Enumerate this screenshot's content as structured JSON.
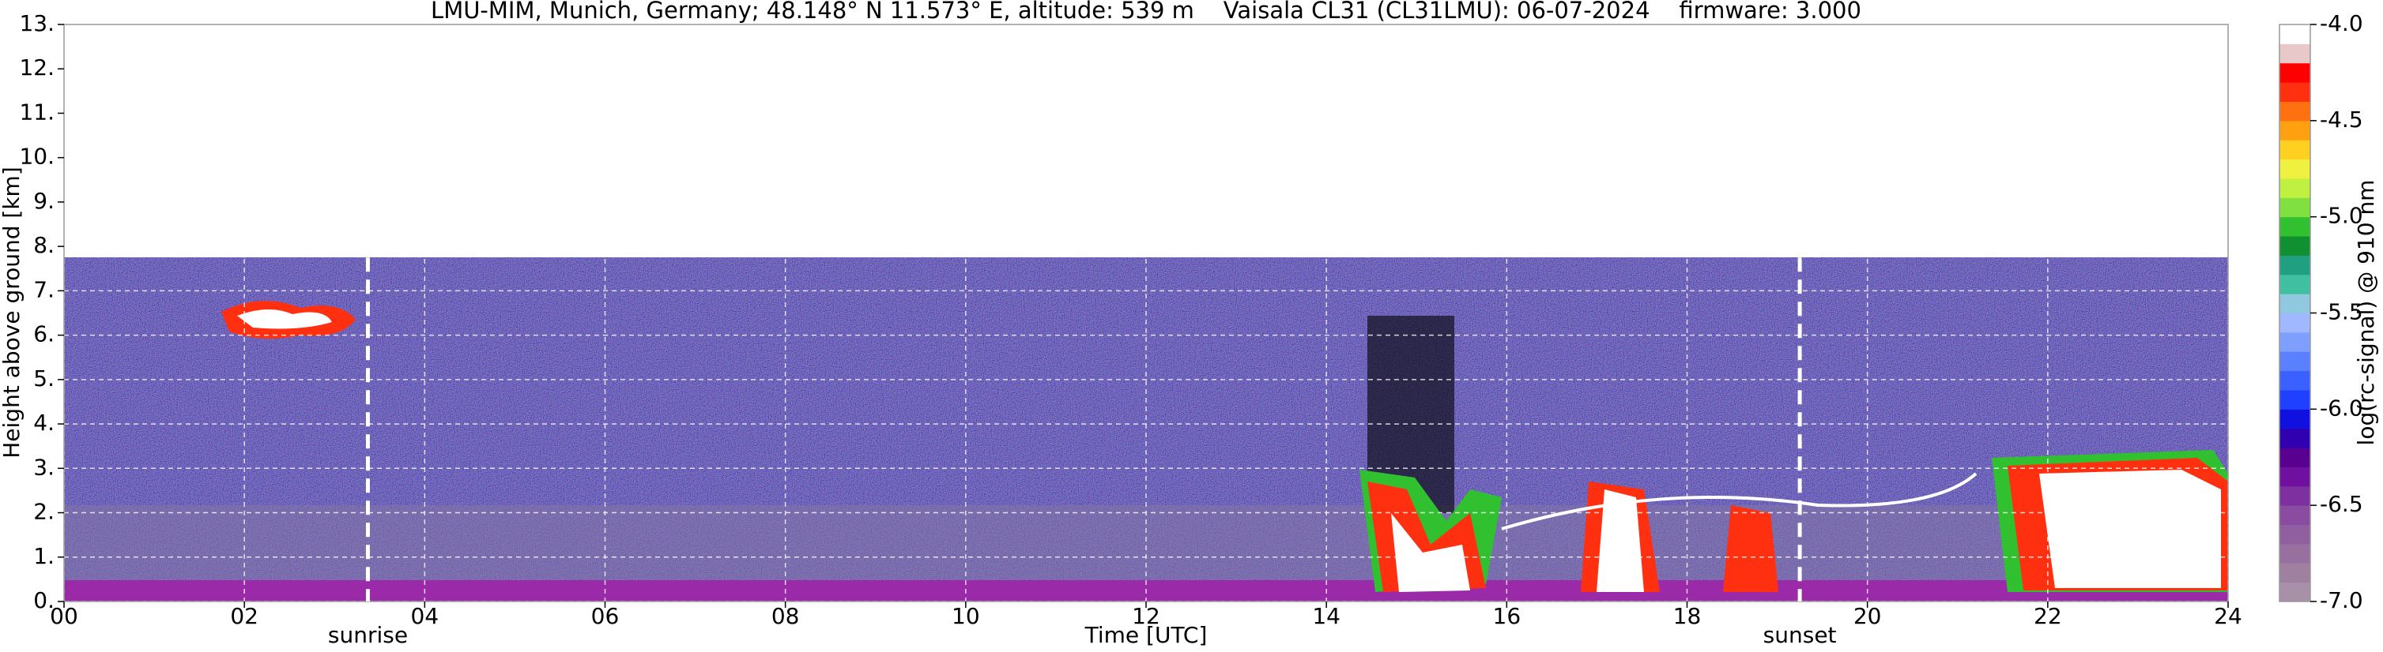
{
  "chart_data": {
    "type": "heatmap",
    "title": "LMU-MIM, Munich, Germany; 48.148° N 11.573° E, altitude: 539 m    Vaisala CL31 (CL31LMU): 06-07-2024    firmware: 3.000",
    "xlabel": "Time [UTC]",
    "ylabel": "Height above ground [km]",
    "colorbar_label": "log(rc-signal) @ 910 nm",
    "xlim": [
      0,
      24
    ],
    "ylim": [
      0,
      13
    ],
    "xticks": [
      {
        "value": 0,
        "label": "00"
      },
      {
        "value": 2,
        "label": "02"
      },
      {
        "value": 4,
        "label": "04"
      },
      {
        "value": 6,
        "label": "06"
      },
      {
        "value": 8,
        "label": "08"
      },
      {
        "value": 10,
        "label": "10"
      },
      {
        "value": 12,
        "label": "12"
      },
      {
        "value": 14,
        "label": "14"
      },
      {
        "value": 16,
        "label": "16"
      },
      {
        "value": 18,
        "label": "18"
      },
      {
        "value": 20,
        "label": "20"
      },
      {
        "value": 22,
        "label": "22"
      },
      {
        "value": 24,
        "label": "24"
      }
    ],
    "yticks": [
      {
        "value": 0,
        "label": "0."
      },
      {
        "value": 1,
        "label": "1."
      },
      {
        "value": 2,
        "label": "2."
      },
      {
        "value": 3,
        "label": "3."
      },
      {
        "value": 4,
        "label": "4."
      },
      {
        "value": 5,
        "label": "5."
      },
      {
        "value": 6,
        "label": "6."
      },
      {
        "value": 7,
        "label": "7."
      },
      {
        "value": 8,
        "label": "8."
      },
      {
        "value": 9,
        "label": "9."
      },
      {
        "value": 10,
        "label": "10."
      },
      {
        "value": 11,
        "label": "11."
      },
      {
        "value": 12,
        "label": "12."
      },
      {
        "value": 13,
        "label": "13."
      }
    ],
    "clim": [
      -7,
      -4
    ],
    "cticks": [
      {
        "value": -7,
        "label": "-7.0"
      },
      {
        "value": -6.5,
        "label": "-6.5"
      },
      {
        "value": -6,
        "label": "-6.0"
      },
      {
        "value": -5.5,
        "label": "-5.5"
      },
      {
        "value": -5,
        "label": "-5.0"
      },
      {
        "value": -4.5,
        "label": "-4.5"
      },
      {
        "value": -4,
        "label": "-4.0"
      }
    ],
    "colormap": [
      "#a890a8",
      "#a080a0",
      "#9870a0",
      "#905fa0",
      "#8a4ca0",
      "#7f30a0",
      "#7010a0",
      "#5a0090",
      "#3000b0",
      "#1010e0",
      "#1f40ff",
      "#3a60ff",
      "#5a80ff",
      "#7f9fff",
      "#a0b8ff",
      "#90c8e0",
      "#40c0a0",
      "#20a080",
      "#109030",
      "#30c030",
      "#80e040",
      "#c0f040",
      "#f0f040",
      "#ffd020",
      "#ffa010",
      "#ff7010",
      "#ff3010",
      "#ff0000",
      "#e8c8c8",
      "#ffffff"
    ],
    "annotations": [
      {
        "label": "sunrise",
        "x": 3.37
      },
      {
        "label": "sunset",
        "x": 19.25
      }
    ],
    "grid": true
  }
}
